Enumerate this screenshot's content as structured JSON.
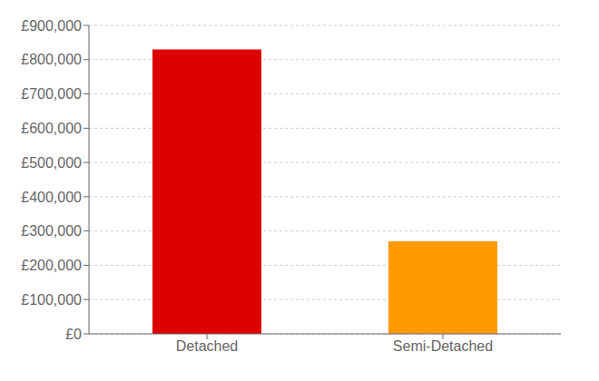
{
  "chart_data": {
    "type": "bar",
    "categories": [
      "Detached",
      "Semi-Detached"
    ],
    "values": [
      830000,
      270000
    ],
    "colors": [
      "#dd0000",
      "#ff9900"
    ],
    "ylim": [
      0,
      900000
    ],
    "yticks": [
      {
        "value": 0,
        "label": "£0"
      },
      {
        "value": 100000,
        "label": "£100,000"
      },
      {
        "value": 200000,
        "label": "£200,000"
      },
      {
        "value": 300000,
        "label": "£300,000"
      },
      {
        "value": 400000,
        "label": "£400,000"
      },
      {
        "value": 500000,
        "label": "£500,000"
      },
      {
        "value": 600000,
        "label": "£600,000"
      },
      {
        "value": 700000,
        "label": "£700,000"
      },
      {
        "value": 800000,
        "label": "£800,000"
      },
      {
        "value": 900000,
        "label": "£900,000"
      }
    ],
    "grid": true
  }
}
